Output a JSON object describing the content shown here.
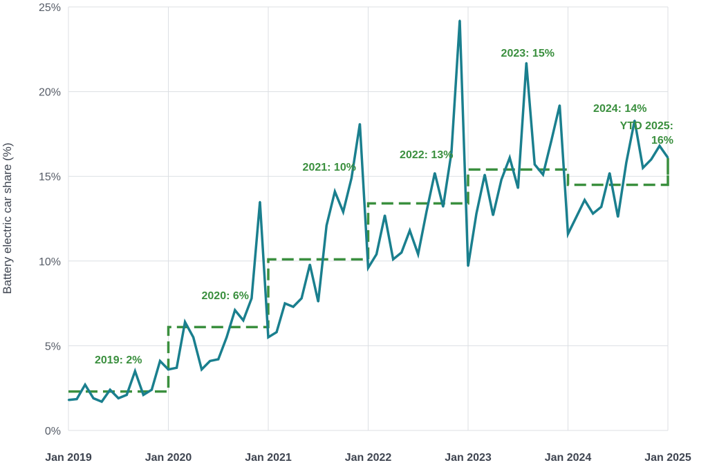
{
  "chart_data": {
    "type": "line",
    "ylabel": "Battery electric car share (%)",
    "ylim": [
      0,
      25
    ],
    "y_ticks": [
      "0%",
      "5%",
      "10%",
      "15%",
      "20%",
      "25%"
    ],
    "x_ticks": [
      "Jan 2019",
      "Jan 2020",
      "Jan 2021",
      "Jan 2022",
      "Jan 2023",
      "Jan 2024",
      "Jan 2025"
    ],
    "grid": true,
    "line_color": "#1a7f8e",
    "avg_color": "#3a8f3e",
    "series": [
      {
        "values": [
          1.8,
          1.85,
          2.7,
          1.9,
          1.7,
          2.4,
          1.9,
          2.1,
          3.5,
          2.1,
          2.4,
          4.1,
          3.6,
          3.7,
          6.4,
          5.5,
          3.6,
          4.1,
          4.2,
          5.5,
          7.1,
          6.5,
          7.8,
          13.5,
          5.5,
          5.8,
          7.5,
          7.3,
          7.8,
          9.8,
          7.6,
          12.1,
          14.1,
          12.9,
          14.9,
          18.1,
          9.6,
          10.4,
          12.7,
          10.1,
          10.5,
          11.8,
          10.4,
          12.9,
          15.2,
          13.2,
          16.4,
          24.2,
          9.7,
          12.8,
          15.1,
          12.7,
          14.8,
          16.1,
          14.3,
          21.7,
          15.7,
          15.1,
          17.1,
          19.2,
          11.6,
          12.6,
          13.6,
          12.8,
          13.2,
          15.2,
          12.6,
          15.8,
          18.3,
          15.5,
          16.0,
          16.8,
          16.1
        ]
      }
    ],
    "annual_averages": [
      {
        "label": "2019: 2%",
        "value": 2.3
      },
      {
        "label": "2020: 6%",
        "value": 6.1
      },
      {
        "label": "2021: 10%",
        "value": 10.1
      },
      {
        "label": "2022: 13%",
        "value": 13.4
      },
      {
        "label": "2023: 15%",
        "value": 15.4
      },
      {
        "label": "2024: 14%",
        "value": 14.5
      },
      {
        "label": "YTD 2025:\n16%",
        "value": 16.1
      }
    ]
  }
}
